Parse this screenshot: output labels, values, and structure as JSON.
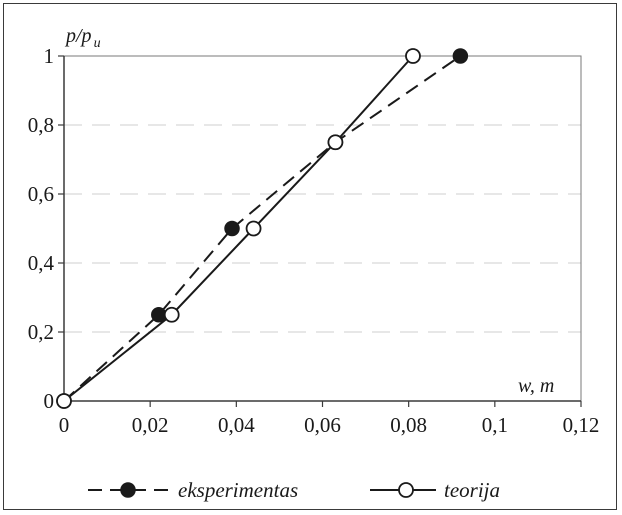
{
  "chart_data": {
    "type": "line",
    "ylabel": "p/p",
    "ylabel_sub": "u",
    "xlabel": "w, m",
    "xlim": [
      0,
      0.12
    ],
    "ylim": [
      0,
      1
    ],
    "x_ticks": [
      0,
      0.02,
      0.04,
      0.06,
      0.08,
      0.1,
      0.12
    ],
    "x_tick_labels": [
      "0",
      "0,02",
      "0,04",
      "0,06",
      "0,08",
      "0,1",
      "0,12"
    ],
    "y_ticks": [
      0,
      0.2,
      0.4,
      0.6,
      0.8,
      1
    ],
    "y_tick_labels": [
      "0",
      "0,2",
      "0,4",
      "0,6",
      "0,8",
      "1"
    ],
    "grid": "horizontal dashed",
    "legend_position": "bottom",
    "series": [
      {
        "name": "eksperimentas",
        "line_style": "dashed",
        "marker": "filled-circle",
        "x": [
          0,
          0.022,
          0.039,
          0.063,
          0.092
        ],
        "y": [
          0,
          0.25,
          0.5,
          0.75,
          1
        ]
      },
      {
        "name": "teorija",
        "line_style": "solid",
        "marker": "open-circle",
        "x": [
          0,
          0.025,
          0.044,
          0.063,
          0.081
        ],
        "y": [
          0,
          0.25,
          0.5,
          0.75,
          1
        ]
      }
    ],
    "colors": {
      "line": "#1a1a1a",
      "grid": "#cfcfcf",
      "axis": "#3a3a3a"
    }
  }
}
